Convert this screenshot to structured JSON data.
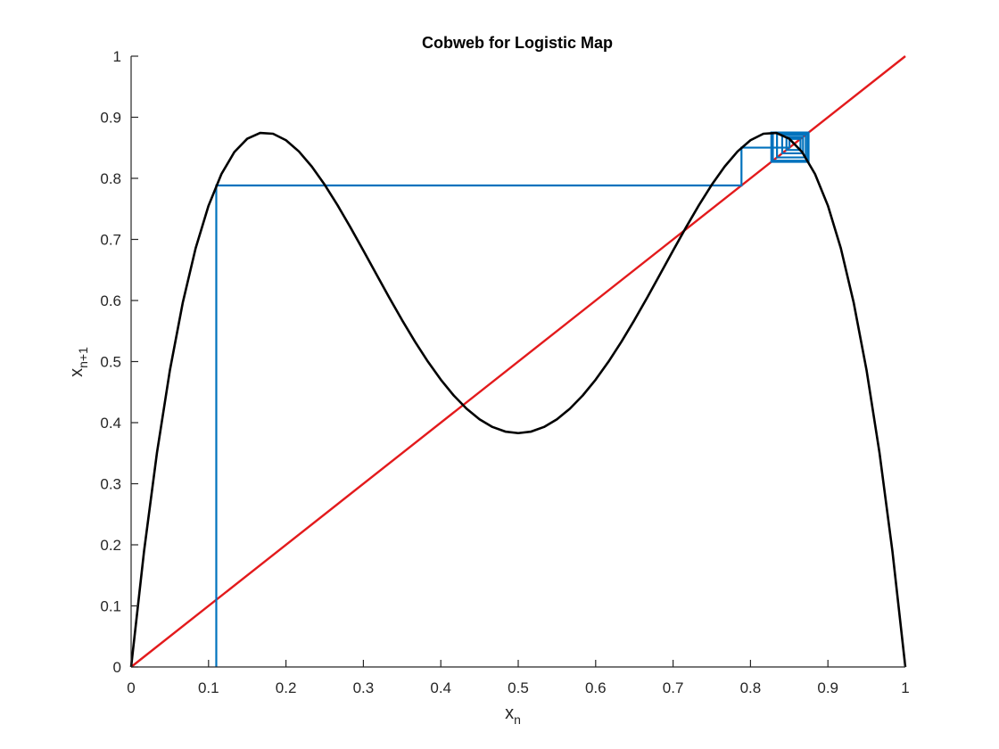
{
  "chart_data": {
    "type": "line",
    "title": "Cobweb for Logistic Map",
    "xlabel": {
      "base": "x",
      "sub": "n"
    },
    "ylabel": {
      "base": "x",
      "sub": "n+1"
    },
    "xlim": [
      0,
      1
    ],
    "ylim": [
      0,
      1
    ],
    "xticks": [
      "0",
      "0.1",
      "0.2",
      "0.3",
      "0.4",
      "0.5",
      "0.6",
      "0.7",
      "0.8",
      "0.9",
      "1"
    ],
    "yticks": [
      "0",
      "0.1",
      "0.2",
      "0.3",
      "0.4",
      "0.5",
      "0.6",
      "0.7",
      "0.8",
      "0.9",
      "1"
    ],
    "grid": false,
    "series": [
      {
        "name": "second-iterate-curve",
        "color": "#000000",
        "r": 3.5,
        "samples": 60
      },
      {
        "name": "identity-line",
        "color": "#e31a1c",
        "x": [
          0,
          1
        ],
        "y": [
          0,
          1
        ]
      },
      {
        "name": "cobweb-path",
        "color": "#0072bd",
        "x0": 0.11,
        "iterations": 40
      }
    ]
  }
}
